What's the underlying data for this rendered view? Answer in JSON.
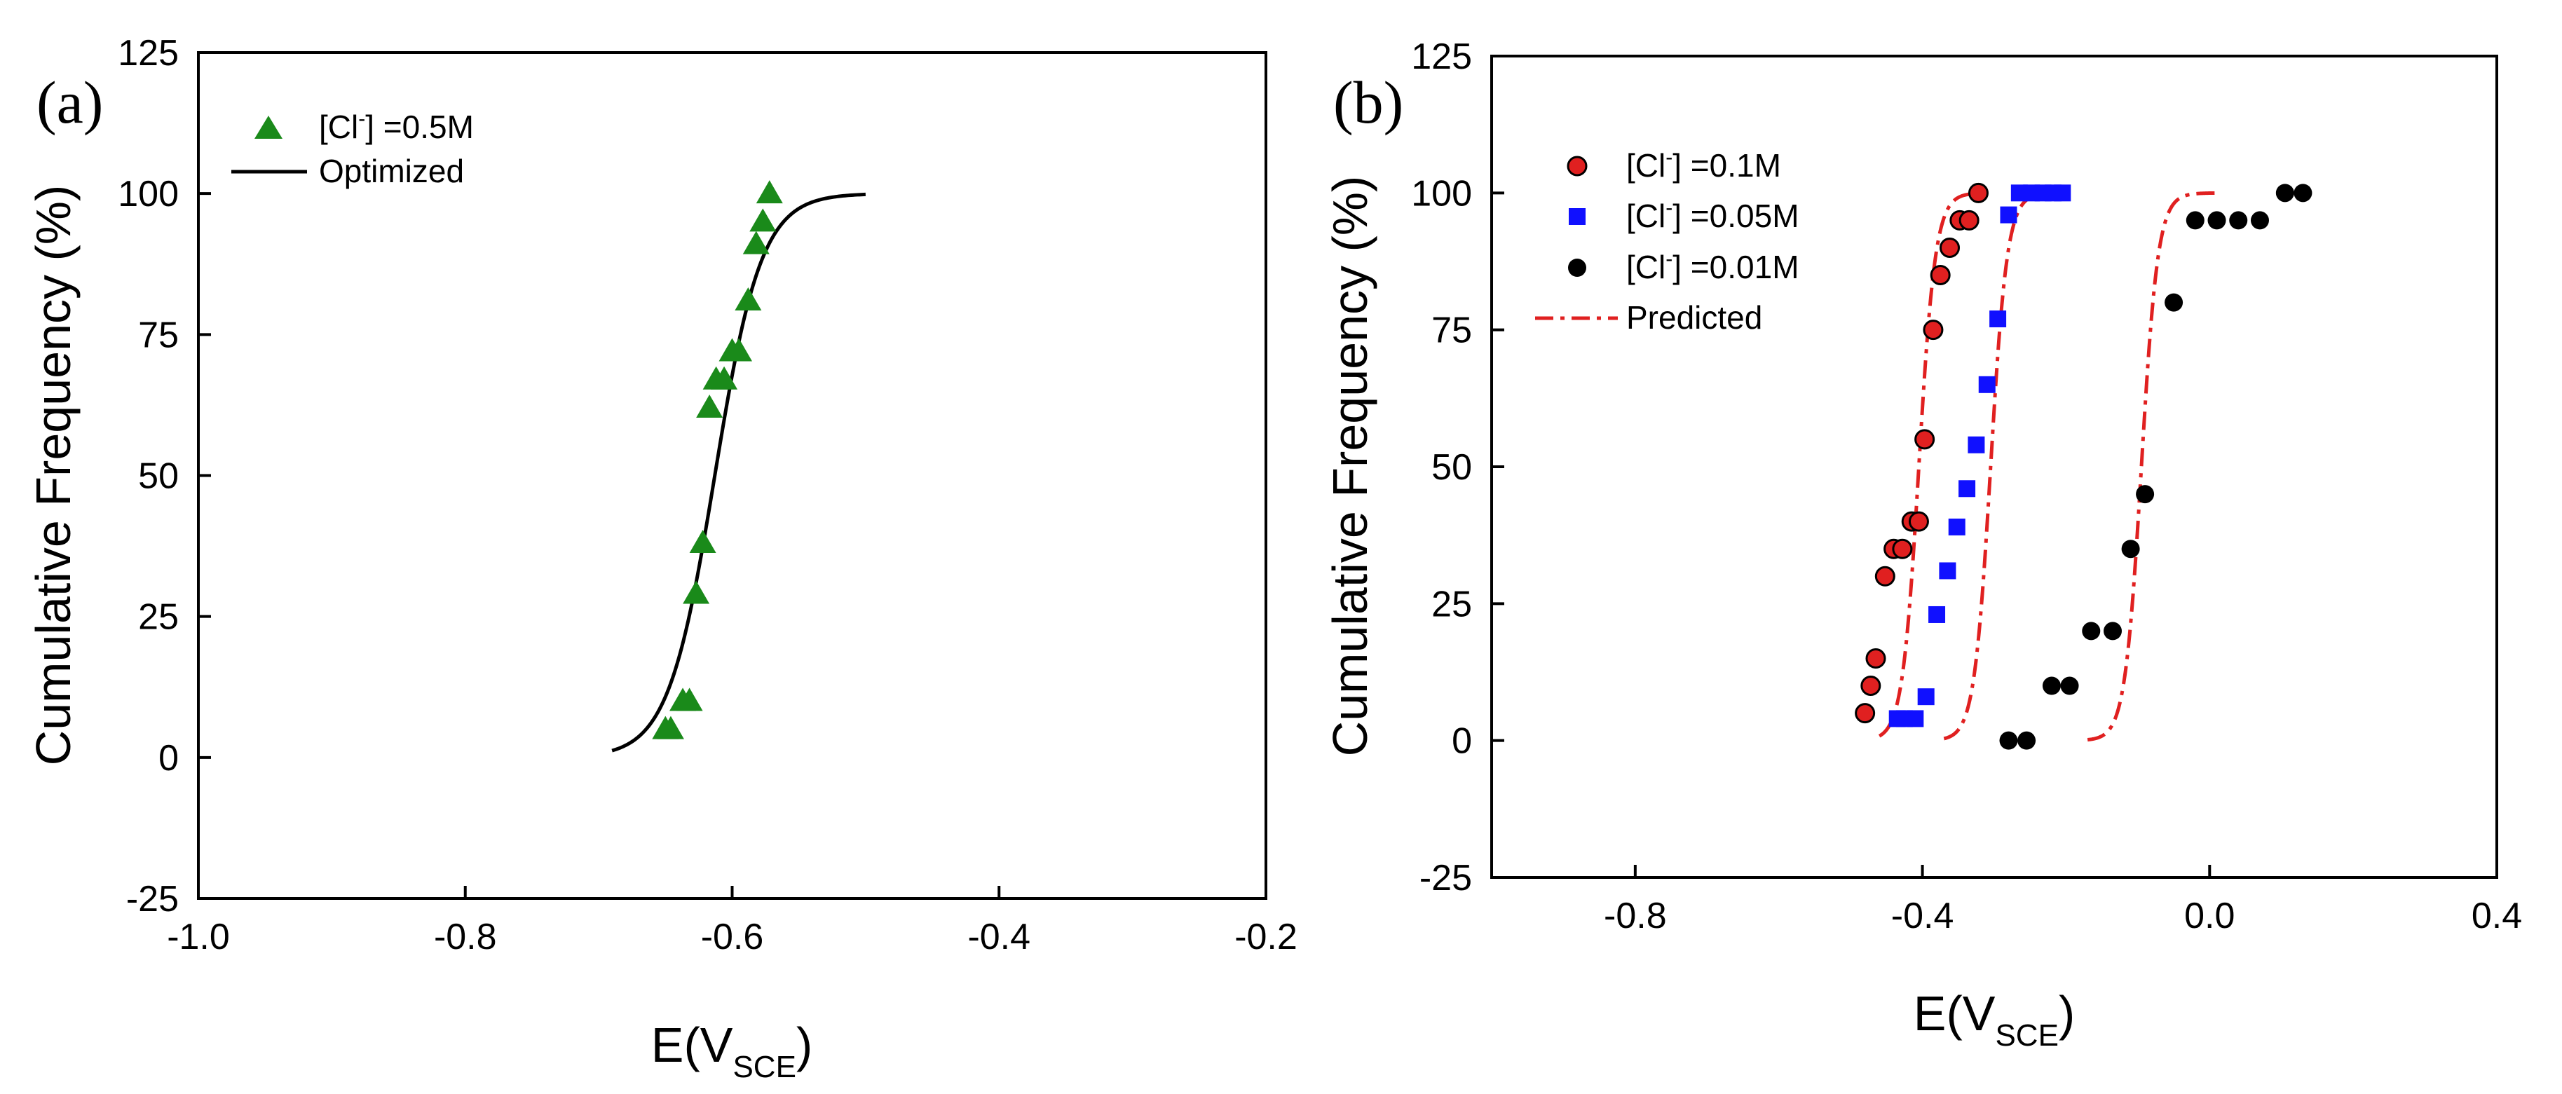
{
  "figure": {
    "panels": [
      "(a)",
      "(b)"
    ]
  },
  "chart_data": [
    {
      "panel": "(a)",
      "type": "scatter",
      "title": "",
      "xlabel": "E(V",
      "xlabel_sub": "SCE",
      "xlabel_close": ")",
      "ylabel": "Cumulative Frequency (%)",
      "xlim": [
        -1.0,
        -0.2
      ],
      "ylim": [
        -25,
        125
      ],
      "xticks": [
        -1.0,
        -0.8,
        -0.6,
        -0.4,
        -0.2
      ],
      "xtick_labels": [
        "-1.0",
        "-0.8",
        "-0.6",
        "-0.4",
        "-0.2"
      ],
      "yticks": [
        -25,
        0,
        25,
        50,
        75,
        100,
        125
      ],
      "ytick_labels": [
        "-25",
        "0",
        "25",
        "50",
        "75",
        "100",
        "125"
      ],
      "legend_position": "top-left",
      "series": [
        {
          "name": "[Cl",
          "name_sup": "-",
          "name_rest": "] =0.5M",
          "kind": "scatter",
          "marker": "triangle",
          "color": "#1a8a1a",
          "x": [
            -0.65,
            -0.646,
            -0.637,
            -0.632,
            -0.627,
            -0.622,
            -0.617,
            -0.612,
            -0.606,
            -0.6,
            -0.595,
            -0.588,
            -0.582,
            -0.577,
            -0.572
          ],
          "y": [
            5,
            5,
            10,
            10,
            29,
            38,
            62,
            67,
            67,
            72,
            72,
            81,
            91,
            95,
            100
          ]
        },
        {
          "name": "Optimized",
          "kind": "line",
          "style": "solid",
          "color": "#000000",
          "curve": {
            "model": "logistic",
            "center": -0.613,
            "scale": 0.0175,
            "from": -0.69,
            "to": -0.5
          }
        }
      ]
    },
    {
      "panel": "(b)",
      "type": "scatter",
      "title": "",
      "xlabel": "E(V",
      "xlabel_sub": "SCE",
      "xlabel_close": ")",
      "ylabel": "Cumulative Frequency (%)",
      "xlim": [
        -1.0,
        0.4
      ],
      "ylim": [
        -25,
        125
      ],
      "xticks": [
        -0.8,
        -0.4,
        0.0,
        0.4
      ],
      "xtick_labels": [
        "-0.8",
        "-0.4",
        "0.0",
        "0.4"
      ],
      "yticks": [
        -25,
        0,
        25,
        50,
        75,
        100,
        125
      ],
      "ytick_labels": [
        "-25",
        "0",
        "25",
        "50",
        "75",
        "100",
        "125"
      ],
      "legend_position": "top-left",
      "series": [
        {
          "name": "[Cl",
          "name_sup": "-",
          "name_rest": "] =0.1M",
          "kind": "scatter",
          "marker": "circle",
          "color": "#e02020",
          "x": [
            -0.48,
            -0.472,
            -0.465,
            -0.452,
            -0.44,
            -0.428,
            -0.415,
            -0.405,
            -0.397,
            -0.385,
            -0.375,
            -0.362,
            -0.348,
            -0.335,
            -0.322
          ],
          "y": [
            5,
            10,
            15,
            30,
            35,
            35,
            40,
            40,
            55,
            75,
            85,
            90,
            95,
            95,
            100
          ]
        },
        {
          "name": "[Cl",
          "name_sup": "-",
          "name_rest": "] =0.05M",
          "kind": "scatter",
          "marker": "square",
          "color": "#1010ff",
          "x": [
            -0.435,
            -0.425,
            -0.41,
            -0.395,
            -0.38,
            -0.365,
            -0.352,
            -0.338,
            -0.325,
            -0.31,
            -0.295,
            -0.28,
            -0.265,
            -0.248,
            -0.232,
            -0.218,
            -0.205
          ],
          "y": [
            4,
            4,
            4,
            8,
            23,
            31,
            39,
            46,
            54,
            65,
            77,
            96,
            100,
            100,
            100,
            100,
            100
          ]
        },
        {
          "name": "[Cl",
          "name_sup": "-",
          "name_rest": "] =0.01M",
          "kind": "scatter",
          "marker": "circle",
          "color": "#000000",
          "x": [
            -0.28,
            -0.255,
            -0.22,
            -0.195,
            -0.165,
            -0.135,
            -0.11,
            -0.09,
            -0.05,
            -0.02,
            0.01,
            0.04,
            0.07,
            0.105,
            0.13
          ],
          "y": [
            0,
            0,
            10,
            10,
            20,
            20,
            35,
            45,
            80,
            95,
            95,
            95,
            95,
            100,
            100
          ]
        },
        {
          "name": "Predicted",
          "kind": "line",
          "style": "dashdot",
          "color": "#e02020",
          "curves": [
            {
              "model": "logistic",
              "center": -0.405,
              "scale": 0.0115,
              "from": -0.46,
              "to": -0.33
            },
            {
              "model": "logistic",
              "center": -0.305,
              "scale": 0.0115,
              "from": -0.37,
              "to": -0.22
            },
            {
              "model": "logistic",
              "center": -0.095,
              "scale": 0.0115,
              "from": -0.17,
              "to": 0.01
            }
          ]
        }
      ]
    }
  ]
}
